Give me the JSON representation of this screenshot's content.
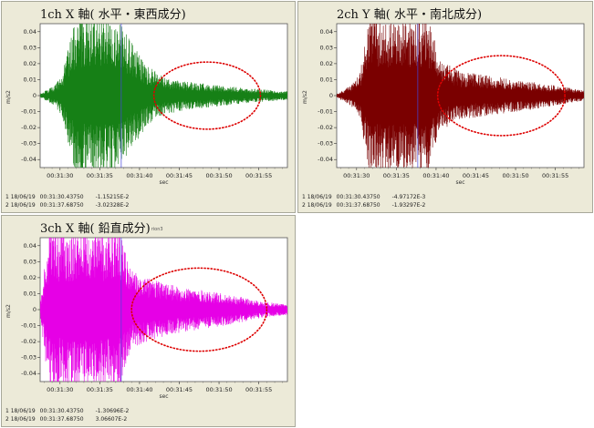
{
  "chart_data": [
    {
      "type": "line",
      "title": "1ch X 軸( 水平・東西成分)",
      "title_tail": "",
      "xlabel": "sec",
      "ylabel": "m/s2",
      "ylim": [
        -0.045,
        0.045
      ],
      "yticks": [
        "0.04",
        "0.03",
        "0.02",
        "0.01",
        "0",
        "-0.01",
        "-0.02",
        "-0.03",
        "-0.04"
      ],
      "xticks": [
        "00:31:30",
        "00:31:35",
        "00:31:40",
        "00:31:45",
        "00:31:50",
        "00:31:55"
      ],
      "x_range_sec": [
        27.5,
        58.6
      ],
      "grid": false,
      "series": [
        {
          "color": "#168016",
          "envelope": [
            {
              "t": 27.5,
              "a": 0.001
            },
            {
              "t": 29.4,
              "a": 0.006
            },
            {
              "t": 30.2,
              "a": 0.012
            },
            {
              "t": 32.0,
              "a": 0.045
            },
            {
              "t": 37.0,
              "a": 0.045
            },
            {
              "t": 39.0,
              "a": 0.03
            },
            {
              "t": 41.0,
              "a": 0.017
            },
            {
              "t": 43.0,
              "a": 0.011
            },
            {
              "t": 46.0,
              "a": 0.008
            },
            {
              "t": 50.0,
              "a": 0.006
            },
            {
              "t": 54.0,
              "a": 0.004
            },
            {
              "t": 58.6,
              "a": 0.0025
            }
          ]
        }
      ],
      "annotations": [
        {
          "type": "ellipse",
          "color": "#dd0000",
          "style": "dotted",
          "t_center": 48.5,
          "y_center": 0.0,
          "t_radius": 6.7,
          "y_radius": 0.021
        }
      ],
      "cursors": [
        {
          "id": "1",
          "date": "18/06/19",
          "time": "00:31:30.43750",
          "value": "-1.15215E-2"
        },
        {
          "id": "2",
          "date": "18/06/19",
          "time": "00:31:37.68750",
          "value": "-3.02328E-2"
        }
      ]
    },
    {
      "type": "line",
      "title": "2ch Y 軸( 水平・南北成分)",
      "title_tail": "",
      "xlabel": "sec",
      "ylabel": "m/s2",
      "ylim": [
        -0.045,
        0.045
      ],
      "yticks": [
        "0.04",
        "0.03",
        "0.02",
        "0.01",
        "0",
        "-0.01",
        "-0.02",
        "-0.03",
        "-0.04"
      ],
      "xticks": [
        "00:31:30",
        "00:31:35",
        "00:31:40",
        "00:31:45",
        "00:31:50",
        "00:31:55"
      ],
      "x_range_sec": [
        27.5,
        58.6
      ],
      "grid": false,
      "series": [
        {
          "color": "#7a0000",
          "envelope": [
            {
              "t": 27.5,
              "a": 0.001
            },
            {
              "t": 29.0,
              "a": 0.005
            },
            {
              "t": 30.4,
              "a": 0.012
            },
            {
              "t": 31.6,
              "a": 0.045
            },
            {
              "t": 39.0,
              "a": 0.045
            },
            {
              "t": 40.5,
              "a": 0.02
            },
            {
              "t": 43.0,
              "a": 0.014
            },
            {
              "t": 47.0,
              "a": 0.011
            },
            {
              "t": 52.0,
              "a": 0.008
            },
            {
              "t": 56.0,
              "a": 0.005
            },
            {
              "t": 58.6,
              "a": 0.003
            }
          ]
        }
      ],
      "annotations": [
        {
          "type": "ellipse",
          "color": "#dd0000",
          "style": "dotted",
          "t_center": 48.2,
          "y_center": 0.0,
          "t_radius": 8.0,
          "y_radius": 0.025
        }
      ],
      "cursors": [
        {
          "id": "1",
          "date": "18/06/19",
          "time": "00:31:30.43750",
          "value": "-4.97172E-3"
        },
        {
          "id": "2",
          "date": "18/06/19",
          "time": "00:31:37.68750",
          "value": "-1.93297E-2"
        }
      ]
    },
    {
      "type": "line",
      "title": "3ch X 軸( 鉛直成分)",
      "title_tail": "rion3",
      "xlabel": "sec",
      "ylabel": "m/s2",
      "ylim": [
        -0.045,
        0.045
      ],
      "yticks": [
        "0.04",
        "0.03",
        "0.02",
        "0.01",
        "0",
        "-0.01",
        "-0.02",
        "-0.03",
        "-0.04"
      ],
      "xticks": [
        "00:31:30",
        "00:31:35",
        "00:31:40",
        "00:31:45",
        "00:31:50",
        "00:31:55"
      ],
      "x_range_sec": [
        27.5,
        58.6
      ],
      "grid": false,
      "series": [
        {
          "color": "#e600e6",
          "envelope": [
            {
              "t": 27.5,
              "a": 0.004
            },
            {
              "t": 28.6,
              "a": 0.045
            },
            {
              "t": 37.5,
              "a": 0.045
            },
            {
              "t": 39.0,
              "a": 0.022
            },
            {
              "t": 41.0,
              "a": 0.018
            },
            {
              "t": 44.0,
              "a": 0.014
            },
            {
              "t": 48.0,
              "a": 0.011
            },
            {
              "t": 52.0,
              "a": 0.008
            },
            {
              "t": 55.0,
              "a": 0.005
            },
            {
              "t": 58.6,
              "a": 0.003
            }
          ]
        }
      ],
      "annotations": [
        {
          "type": "ellipse",
          "color": "#dd0000",
          "style": "dotted",
          "t_center": 47.5,
          "y_center": 0.0,
          "t_radius": 8.5,
          "y_radius": 0.026
        }
      ],
      "cursors": [
        {
          "id": "1",
          "date": "18/06/19",
          "time": "00:31:30.43750",
          "value": "-1.30696E-2"
        },
        {
          "id": "2",
          "date": "18/06/19",
          "time": "00:31:37.68750",
          "value": "3.06607E-2"
        }
      ]
    }
  ]
}
